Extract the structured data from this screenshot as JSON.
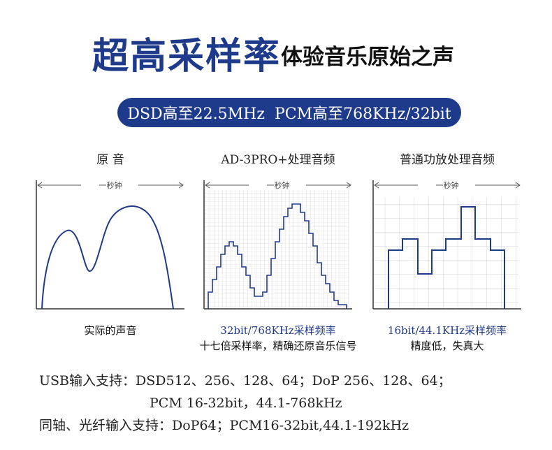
{
  "header": {
    "title": "超高采样率",
    "subtitle": "体验音乐原始之声"
  },
  "badge": {
    "dsd": "DSD高至22.5MHz",
    "pcm": "PCM高至768KHz/32bit"
  },
  "panels": [
    {
      "title": "原  音",
      "time_label": "一秒钟",
      "caption_primary": "实际的声音",
      "caption_secondary": ""
    },
    {
      "title": "AD-3PRO+处理音频",
      "time_label": "一秒钟",
      "caption_primary": "32bit/768KHz采样频率",
      "caption_secondary": "十七倍采样率，精确还原音乐信号"
    },
    {
      "title": "普通功放处理音频",
      "time_label": "一秒钟",
      "caption_primary": "16bit/44.1KHz采样频率",
      "caption_secondary": "精度低，失真大"
    }
  ],
  "specs": {
    "usb_line1": "USB输入支持：DSD512、256、128、64；DoP 256、128、64；",
    "usb_line2": "PCM 16-32bit，44.1-768kHz",
    "coax_optical": "同轴、光纤输入支持：DoP64；PCM16-32bit,44.1-192kHz"
  },
  "colors": {
    "brand_blue": "#1e3a8a",
    "grid": "#c8c8c8"
  }
}
